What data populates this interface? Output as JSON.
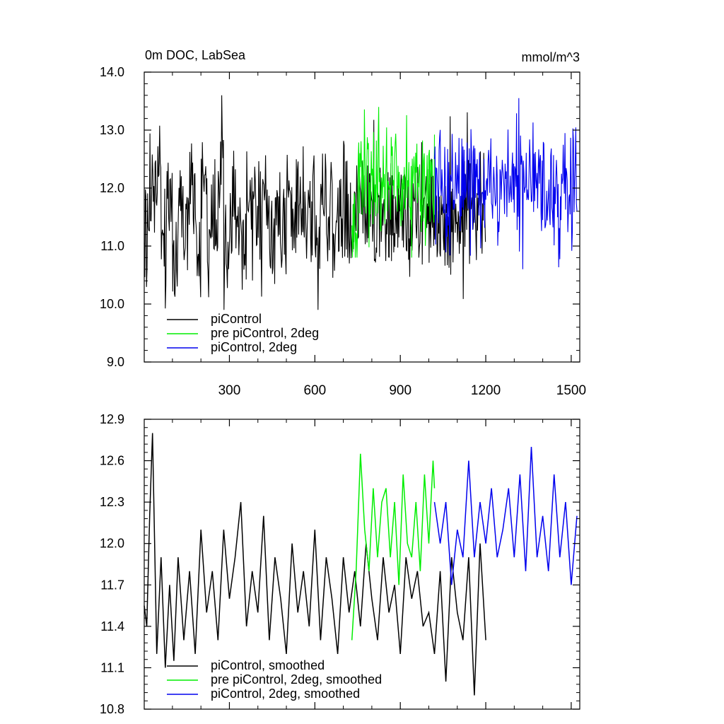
{
  "chart_data": [
    {
      "type": "line",
      "title": "0m DOC, LabSea",
      "units": "mmol/m^3",
      "xlim": [
        1,
        1530
      ],
      "ylim": [
        9.0,
        14.0
      ],
      "xticks": [
        300,
        600,
        900,
        1200,
        1500
      ],
      "xtick_labels": [
        "300",
        "600",
        "900",
        "1200",
        "1500"
      ],
      "yticks": [
        9.0,
        10.0,
        11.0,
        12.0,
        13.0,
        14.0
      ],
      "ytick_labels": [
        "9.0",
        "10.0",
        "11.0",
        "12.0",
        "13.0",
        "14.0"
      ],
      "grid": false,
      "legend_position": "bottom-left",
      "series": [
        {
          "name": "piControl",
          "color": "#000000",
          "x_range": [
            1,
            1200
          ],
          "x_step": 20,
          "values": [
            11.5,
            11.9,
            12.3,
            11.2,
            11.7,
            10.9,
            11.6,
            11.4,
            12.2,
            11.0,
            11.8,
            11.3,
            11.5,
            12.4,
            11.1,
            11.7,
            11.6,
            10.8,
            11.9,
            11.4,
            11.5,
            12.1,
            11.2,
            11.6,
            11.3,
            11.8,
            11.5,
            11.9,
            11.4,
            11.7,
            11.2,
            12.0,
            11.6,
            11.5,
            11.4,
            11.8,
            11.3,
            11.6,
            11.7,
            11.5,
            11.4,
            11.6,
            11.3,
            11.7,
            11.5,
            11.8,
            11.2,
            11.6,
            11.5,
            11.4,
            11.7,
            11.6,
            11.3,
            11.5,
            11.6,
            11.4,
            11.7,
            11.5,
            11.3,
            11.6
          ],
          "min": 9.9,
          "max": 13.6
        },
        {
          "name": "pre piControl, 2deg",
          "color": "#00ee00",
          "x_range": [
            730,
            1020
          ],
          "x_step": 20,
          "values": [
            11.4,
            12.1,
            12.3,
            12.0,
            12.2,
            11.9,
            12.4,
            12.1,
            11.8,
            12.3,
            12.0,
            12.2,
            11.9,
            12.1,
            12.0
          ],
          "min": 10.8,
          "max": 13.5
        },
        {
          "name": "piControl, 2deg",
          "color": "#0000ee",
          "x_range": [
            1020,
            1520
          ],
          "x_step": 20,
          "values": [
            12.0,
            12.1,
            11.8,
            12.2,
            11.9,
            12.0,
            12.3,
            12.0,
            11.9,
            12.1,
            12.0,
            11.8,
            12.2,
            12.1,
            11.9,
            12.0,
            12.1,
            12.2,
            11.8,
            12.0,
            12.1,
            11.9,
            12.2,
            12.0,
            12.1,
            12.0
          ],
          "min": 10.6,
          "max": 13.6
        }
      ]
    },
    {
      "type": "line",
      "xlim": [
        1,
        1530
      ],
      "ylim": [
        10.8,
        12.9
      ],
      "xticks": [
        300,
        600,
        900,
        1200,
        1500
      ],
      "yticks": [
        10.8,
        11.1,
        11.4,
        11.7,
        12.0,
        12.3,
        12.6,
        12.9
      ],
      "ytick_labels": [
        "10.8",
        "11.1",
        "11.4",
        "11.7",
        "12.0",
        "12.3",
        "12.6",
        "12.9"
      ],
      "grid": false,
      "legend_position": "bottom-left",
      "series": [
        {
          "name": "piControl, smoothed",
          "color": "#000000",
          "x": [
            1,
            10,
            20,
            30,
            45,
            60,
            75,
            90,
            105,
            120,
            140,
            160,
            180,
            200,
            220,
            240,
            260,
            280,
            300,
            320,
            340,
            360,
            380,
            400,
            420,
            440,
            460,
            480,
            500,
            520,
            540,
            560,
            580,
            600,
            620,
            640,
            660,
            680,
            700,
            720,
            740,
            760,
            780,
            800,
            820,
            840,
            860,
            880,
            900,
            920,
            940,
            960,
            980,
            1000,
            1020,
            1040,
            1060,
            1080,
            1100,
            1120,
            1140,
            1160,
            1180,
            1200
          ],
          "values": [
            11.55,
            11.4,
            12.2,
            12.8,
            11.2,
            11.9,
            11.1,
            11.7,
            11.15,
            11.9,
            11.3,
            11.8,
            11.2,
            12.1,
            11.5,
            11.8,
            11.3,
            12.1,
            11.6,
            11.9,
            12.3,
            11.4,
            11.8,
            11.5,
            12.2,
            11.3,
            11.9,
            11.6,
            11.2,
            12.0,
            11.5,
            11.8,
            11.4,
            12.1,
            11.3,
            11.9,
            11.6,
            11.2,
            11.9,
            11.5,
            11.8,
            11.4,
            12.0,
            11.6,
            11.3,
            11.9,
            11.5,
            11.7,
            11.2,
            11.9,
            11.6,
            11.8,
            11.4,
            11.5,
            11.2,
            11.8,
            11.0,
            11.9,
            11.5,
            11.3,
            11.9,
            10.9,
            12.0,
            11.3
          ]
        },
        {
          "name": "pre piControl, 2deg, smoothed",
          "color": "#00ee00",
          "x": [
            730,
            745,
            760,
            775,
            790,
            805,
            820,
            835,
            850,
            865,
            880,
            895,
            910,
            925,
            940,
            955,
            970,
            985,
            1000,
            1015,
            1020
          ],
          "values": [
            11.3,
            11.8,
            12.65,
            12.1,
            11.8,
            12.4,
            11.9,
            12.3,
            12.4,
            11.9,
            12.3,
            11.7,
            12.5,
            12.0,
            11.9,
            12.3,
            11.8,
            12.5,
            12.0,
            12.6,
            12.4
          ]
        },
        {
          "name": "piControl, 2deg, smoothed",
          "color": "#0000ee",
          "x": [
            1020,
            1040,
            1060,
            1080,
            1100,
            1120,
            1140,
            1160,
            1180,
            1200,
            1220,
            1240,
            1260,
            1280,
            1300,
            1320,
            1340,
            1360,
            1380,
            1400,
            1420,
            1440,
            1460,
            1480,
            1500,
            1520
          ],
          "values": [
            12.3,
            12.0,
            12.3,
            11.7,
            12.1,
            11.9,
            12.6,
            11.9,
            12.3,
            12.0,
            12.4,
            11.9,
            12.1,
            12.4,
            11.9,
            12.5,
            11.8,
            12.7,
            11.9,
            12.2,
            11.8,
            12.5,
            11.9,
            12.3,
            11.7,
            12.2
          ]
        }
      ]
    }
  ]
}
